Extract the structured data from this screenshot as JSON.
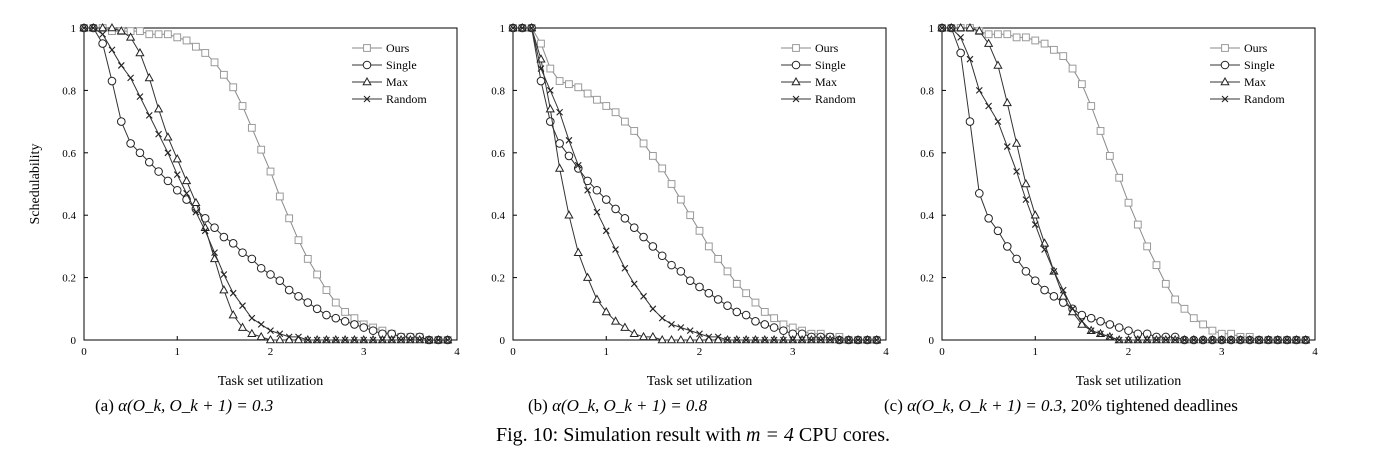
{
  "figure": {
    "caption_prefix": "Fig. 10: Simulation result with",
    "caption_math": "m = 4",
    "caption_suffix": "CPU cores."
  },
  "shared": {
    "xlabel": "Task set utilization",
    "ylabel": "Schedulability",
    "xticks": [
      "0",
      "1",
      "2",
      "3",
      "4"
    ],
    "yticks": [
      "0",
      "0.2",
      "0.4",
      "0.6",
      "0.8",
      "1"
    ]
  },
  "panels": [
    {
      "label": "(a)",
      "math": "α(O_k, O_k + 1) = 0.3",
      "extra": ""
    },
    {
      "label": "(b)",
      "math": "α(O_k, O_k + 1) = 0.8",
      "extra": ""
    },
    {
      "label": "(c)",
      "math": "α(O_k, O_k + 1) = 0.3,",
      "extra": "20% tightened deadlines"
    }
  ],
  "chart_data": [
    {
      "type": "line",
      "xlabel": "Task set utilization",
      "ylabel": "Schedulability",
      "xlim": [
        0,
        4
      ],
      "ylim": [
        0,
        1
      ],
      "grid": false,
      "legend_position": "top-right",
      "x": [
        0,
        0.1,
        0.2,
        0.3,
        0.4,
        0.5,
        0.6,
        0.7,
        0.8,
        0.9,
        1.0,
        1.1,
        1.2,
        1.3,
        1.4,
        1.5,
        1.6,
        1.7,
        1.8,
        1.9,
        2.0,
        2.1,
        2.2,
        2.3,
        2.4,
        2.5,
        2.6,
        2.7,
        2.8,
        2.9,
        3.0,
        3.1,
        3.2,
        3.3,
        3.4,
        3.5,
        3.6,
        3.7,
        3.8,
        3.9
      ],
      "series": [
        {
          "name": "Ours",
          "marker": "square",
          "values": [
            1,
            1,
            1,
            0.99,
            0.99,
            0.99,
            0.99,
            0.98,
            0.98,
            0.98,
            0.97,
            0.96,
            0.94,
            0.92,
            0.89,
            0.85,
            0.81,
            0.75,
            0.68,
            0.61,
            0.54,
            0.46,
            0.39,
            0.32,
            0.26,
            0.21,
            0.16,
            0.12,
            0.09,
            0.07,
            0.05,
            0.04,
            0.03,
            0.02,
            0.01,
            0.01,
            0.01,
            0,
            0,
            0
          ]
        },
        {
          "name": "Single",
          "marker": "circle",
          "values": [
            1,
            1,
            0.95,
            0.83,
            0.7,
            0.63,
            0.6,
            0.57,
            0.54,
            0.51,
            0.48,
            0.45,
            0.42,
            0.39,
            0.36,
            0.33,
            0.31,
            0.28,
            0.26,
            0.23,
            0.21,
            0.19,
            0.16,
            0.14,
            0.12,
            0.1,
            0.08,
            0.07,
            0.06,
            0.05,
            0.04,
            0.03,
            0.02,
            0.02,
            0.01,
            0.01,
            0.01,
            0,
            0,
            0
          ]
        },
        {
          "name": "Max",
          "marker": "triangle",
          "values": [
            1,
            1,
            1,
            1,
            0.99,
            0.97,
            0.92,
            0.84,
            0.74,
            0.65,
            0.58,
            0.51,
            0.44,
            0.36,
            0.26,
            0.16,
            0.08,
            0.04,
            0.02,
            0.01,
            0,
            0,
            0,
            0,
            0,
            0,
            0,
            0,
            0,
            0,
            0,
            0,
            0,
            0,
            0,
            0,
            0,
            0,
            0,
            0
          ]
        },
        {
          "name": "Random",
          "marker": "x",
          "values": [
            1,
            1,
            0.98,
            0.93,
            0.88,
            0.84,
            0.78,
            0.72,
            0.66,
            0.6,
            0.53,
            0.47,
            0.41,
            0.35,
            0.28,
            0.21,
            0.15,
            0.11,
            0.07,
            0.05,
            0.03,
            0.02,
            0.01,
            0.01,
            0,
            0,
            0,
            0,
            0,
            0,
            0,
            0,
            0,
            0,
            0,
            0,
            0,
            0,
            0,
            0
          ]
        }
      ]
    },
    {
      "type": "line",
      "xlabel": "Task set utilization",
      "ylabel": "Schedulability",
      "xlim": [
        0,
        4
      ],
      "ylim": [
        0,
        1
      ],
      "grid": false,
      "legend_position": "top-right",
      "x": [
        0,
        0.1,
        0.2,
        0.3,
        0.4,
        0.5,
        0.6,
        0.7,
        0.8,
        0.9,
        1.0,
        1.1,
        1.2,
        1.3,
        1.4,
        1.5,
        1.6,
        1.7,
        1.8,
        1.9,
        2.0,
        2.1,
        2.2,
        2.3,
        2.4,
        2.5,
        2.6,
        2.7,
        2.8,
        2.9,
        3.0,
        3.1,
        3.2,
        3.3,
        3.4,
        3.5,
        3.6,
        3.7,
        3.8,
        3.9
      ],
      "series": [
        {
          "name": "Ours",
          "marker": "square",
          "values": [
            1,
            1,
            1,
            0.95,
            0.87,
            0.83,
            0.82,
            0.81,
            0.79,
            0.77,
            0.75,
            0.73,
            0.7,
            0.67,
            0.63,
            0.59,
            0.55,
            0.5,
            0.45,
            0.4,
            0.35,
            0.3,
            0.26,
            0.22,
            0.18,
            0.15,
            0.12,
            0.09,
            0.07,
            0.05,
            0.04,
            0.03,
            0.02,
            0.02,
            0.01,
            0.01,
            0,
            0,
            0,
            0
          ]
        },
        {
          "name": "Single",
          "marker": "circle",
          "values": [
            1,
            1,
            1,
            0.83,
            0.7,
            0.63,
            0.59,
            0.55,
            0.51,
            0.48,
            0.45,
            0.42,
            0.39,
            0.36,
            0.33,
            0.3,
            0.27,
            0.24,
            0.22,
            0.19,
            0.17,
            0.15,
            0.13,
            0.11,
            0.09,
            0.08,
            0.06,
            0.05,
            0.04,
            0.03,
            0.02,
            0.02,
            0.01,
            0.01,
            0.01,
            0,
            0,
            0,
            0,
            0
          ]
        },
        {
          "name": "Max",
          "marker": "triangle",
          "values": [
            1,
            1,
            1,
            0.9,
            0.74,
            0.55,
            0.4,
            0.28,
            0.2,
            0.13,
            0.09,
            0.06,
            0.04,
            0.02,
            0.01,
            0.01,
            0,
            0,
            0,
            0,
            0,
            0,
            0,
            0,
            0,
            0,
            0,
            0,
            0,
            0,
            0,
            0,
            0,
            0,
            0,
            0,
            0,
            0,
            0,
            0
          ]
        },
        {
          "name": "Random",
          "marker": "x",
          "values": [
            1,
            1,
            1,
            0.87,
            0.8,
            0.73,
            0.64,
            0.56,
            0.48,
            0.41,
            0.35,
            0.29,
            0.23,
            0.18,
            0.14,
            0.1,
            0.07,
            0.05,
            0.04,
            0.03,
            0.02,
            0.01,
            0.01,
            0,
            0,
            0,
            0,
            0,
            0,
            0,
            0,
            0,
            0,
            0,
            0,
            0,
            0,
            0,
            0,
            0
          ]
        }
      ]
    },
    {
      "type": "line",
      "xlabel": "Task set utilization",
      "ylabel": "Schedulability",
      "xlim": [
        0,
        4
      ],
      "ylim": [
        0,
        1
      ],
      "grid": false,
      "legend_position": "top-right",
      "x": [
        0,
        0.1,
        0.2,
        0.3,
        0.4,
        0.5,
        0.6,
        0.7,
        0.8,
        0.9,
        1.0,
        1.1,
        1.2,
        1.3,
        1.4,
        1.5,
        1.6,
        1.7,
        1.8,
        1.9,
        2.0,
        2.1,
        2.2,
        2.3,
        2.4,
        2.5,
        2.6,
        2.7,
        2.8,
        2.9,
        3.0,
        3.1,
        3.2,
        3.3,
        3.4,
        3.5,
        3.6,
        3.7,
        3.8,
        3.9
      ],
      "series": [
        {
          "name": "Ours",
          "marker": "square",
          "values": [
            1,
            1,
            1,
            1,
            0.99,
            0.98,
            0.98,
            0.98,
            0.97,
            0.97,
            0.96,
            0.95,
            0.93,
            0.91,
            0.87,
            0.82,
            0.75,
            0.67,
            0.59,
            0.52,
            0.44,
            0.37,
            0.3,
            0.24,
            0.18,
            0.13,
            0.1,
            0.07,
            0.05,
            0.03,
            0.02,
            0.02,
            0.01,
            0.01,
            0,
            0,
            0,
            0,
            0,
            0
          ]
        },
        {
          "name": "Single",
          "marker": "circle",
          "values": [
            1,
            1,
            0.92,
            0.7,
            0.47,
            0.39,
            0.35,
            0.3,
            0.26,
            0.22,
            0.19,
            0.16,
            0.14,
            0.12,
            0.1,
            0.08,
            0.07,
            0.06,
            0.05,
            0.04,
            0.03,
            0.02,
            0.02,
            0.01,
            0.01,
            0.01,
            0,
            0,
            0,
            0,
            0,
            0,
            0,
            0,
            0,
            0,
            0,
            0,
            0,
            0
          ]
        },
        {
          "name": "Max",
          "marker": "triangle",
          "values": [
            1,
            1,
            1,
            1,
            0.99,
            0.95,
            0.88,
            0.76,
            0.63,
            0.5,
            0.4,
            0.31,
            0.22,
            0.14,
            0.09,
            0.05,
            0.03,
            0.02,
            0.01,
            0,
            0,
            0,
            0,
            0,
            0,
            0,
            0,
            0,
            0,
            0,
            0,
            0,
            0,
            0,
            0,
            0,
            0,
            0,
            0,
            0
          ]
        },
        {
          "name": "Random",
          "marker": "x",
          "values": [
            1,
            1,
            0.97,
            0.9,
            0.8,
            0.75,
            0.7,
            0.62,
            0.54,
            0.45,
            0.37,
            0.29,
            0.22,
            0.16,
            0.1,
            0.06,
            0.03,
            0.02,
            0.01,
            0,
            0,
            0,
            0,
            0,
            0,
            0,
            0,
            0,
            0,
            0,
            0,
            0,
            0,
            0,
            0,
            0,
            0,
            0,
            0,
            0
          ]
        }
      ]
    }
  ]
}
